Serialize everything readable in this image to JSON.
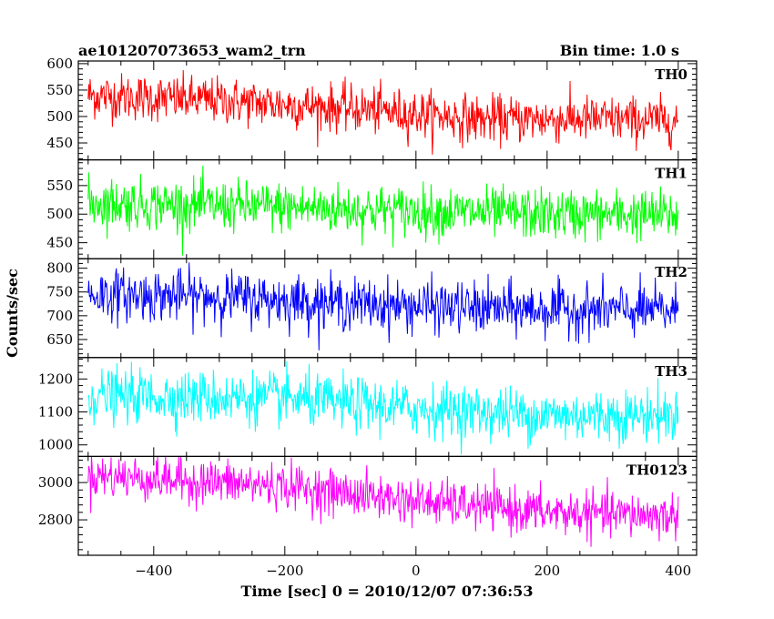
{
  "chart_data": {
    "type": "line",
    "title": "ae101207073653_wam2_trn",
    "title_right": "Bin time: 1.0 s",
    "xlabel": "Time [sec] 0 = 2010/12/07 07:36:53",
    "ylabel": "Counts/sec",
    "xlim": [
      -515,
      428
    ],
    "xticks": [
      -400,
      -200,
      0,
      200,
      400
    ],
    "x_range_data": [
      -500,
      400
    ],
    "grid": false,
    "panels": [
      {
        "name": "TH0",
        "color": "#ff0000",
        "ylim": [
          418,
          605
        ],
        "yticks": [
          450,
          500,
          550,
          600
        ],
        "trend": [
          [
            -500,
            540
          ],
          [
            -300,
            530
          ],
          [
            -100,
            515
          ],
          [
            100,
            495
          ],
          [
            250,
            495
          ],
          [
            400,
            492
          ]
        ],
        "noise_sd": 22
      },
      {
        "name": "TH1",
        "color": "#00ff00",
        "ylim": [
          422,
          595
        ],
        "yticks": [
          450,
          500,
          550
        ],
        "trend": [
          [
            -500,
            520
          ],
          [
            -200,
            512
          ],
          [
            0,
            505
          ],
          [
            200,
            500
          ],
          [
            400,
            498
          ]
        ],
        "noise_sd": 22
      },
      {
        "name": "TH2",
        "color": "#0000ff",
        "ylim": [
          612,
          820
        ],
        "yticks": [
          650,
          700,
          750,
          800
        ],
        "trend": [
          [
            -500,
            745
          ],
          [
            -300,
            740
          ],
          [
            -100,
            725
          ],
          [
            100,
            715
          ],
          [
            400,
            710
          ]
        ],
        "noise_sd": 27
      },
      {
        "name": "TH3",
        "color": "#00ffff",
        "ylim": [
          965,
          1265
        ],
        "yticks": [
          1000,
          1100,
          1200
        ],
        "trend": [
          [
            -500,
            1150
          ],
          [
            -200,
            1140
          ],
          [
            0,
            1110
          ],
          [
            200,
            1090
          ],
          [
            400,
            1090
          ]
        ],
        "noise_sd": 40
      },
      {
        "name": "TH0123",
        "color": "#ff00ff",
        "ylim": [
          2610,
          3140
        ],
        "yticks": [
          2800,
          3000
        ],
        "trend": [
          [
            -500,
            3040
          ],
          [
            -200,
            2980
          ],
          [
            0,
            2900
          ],
          [
            200,
            2840
          ],
          [
            400,
            2820
          ]
        ],
        "noise_sd": 60
      }
    ]
  }
}
